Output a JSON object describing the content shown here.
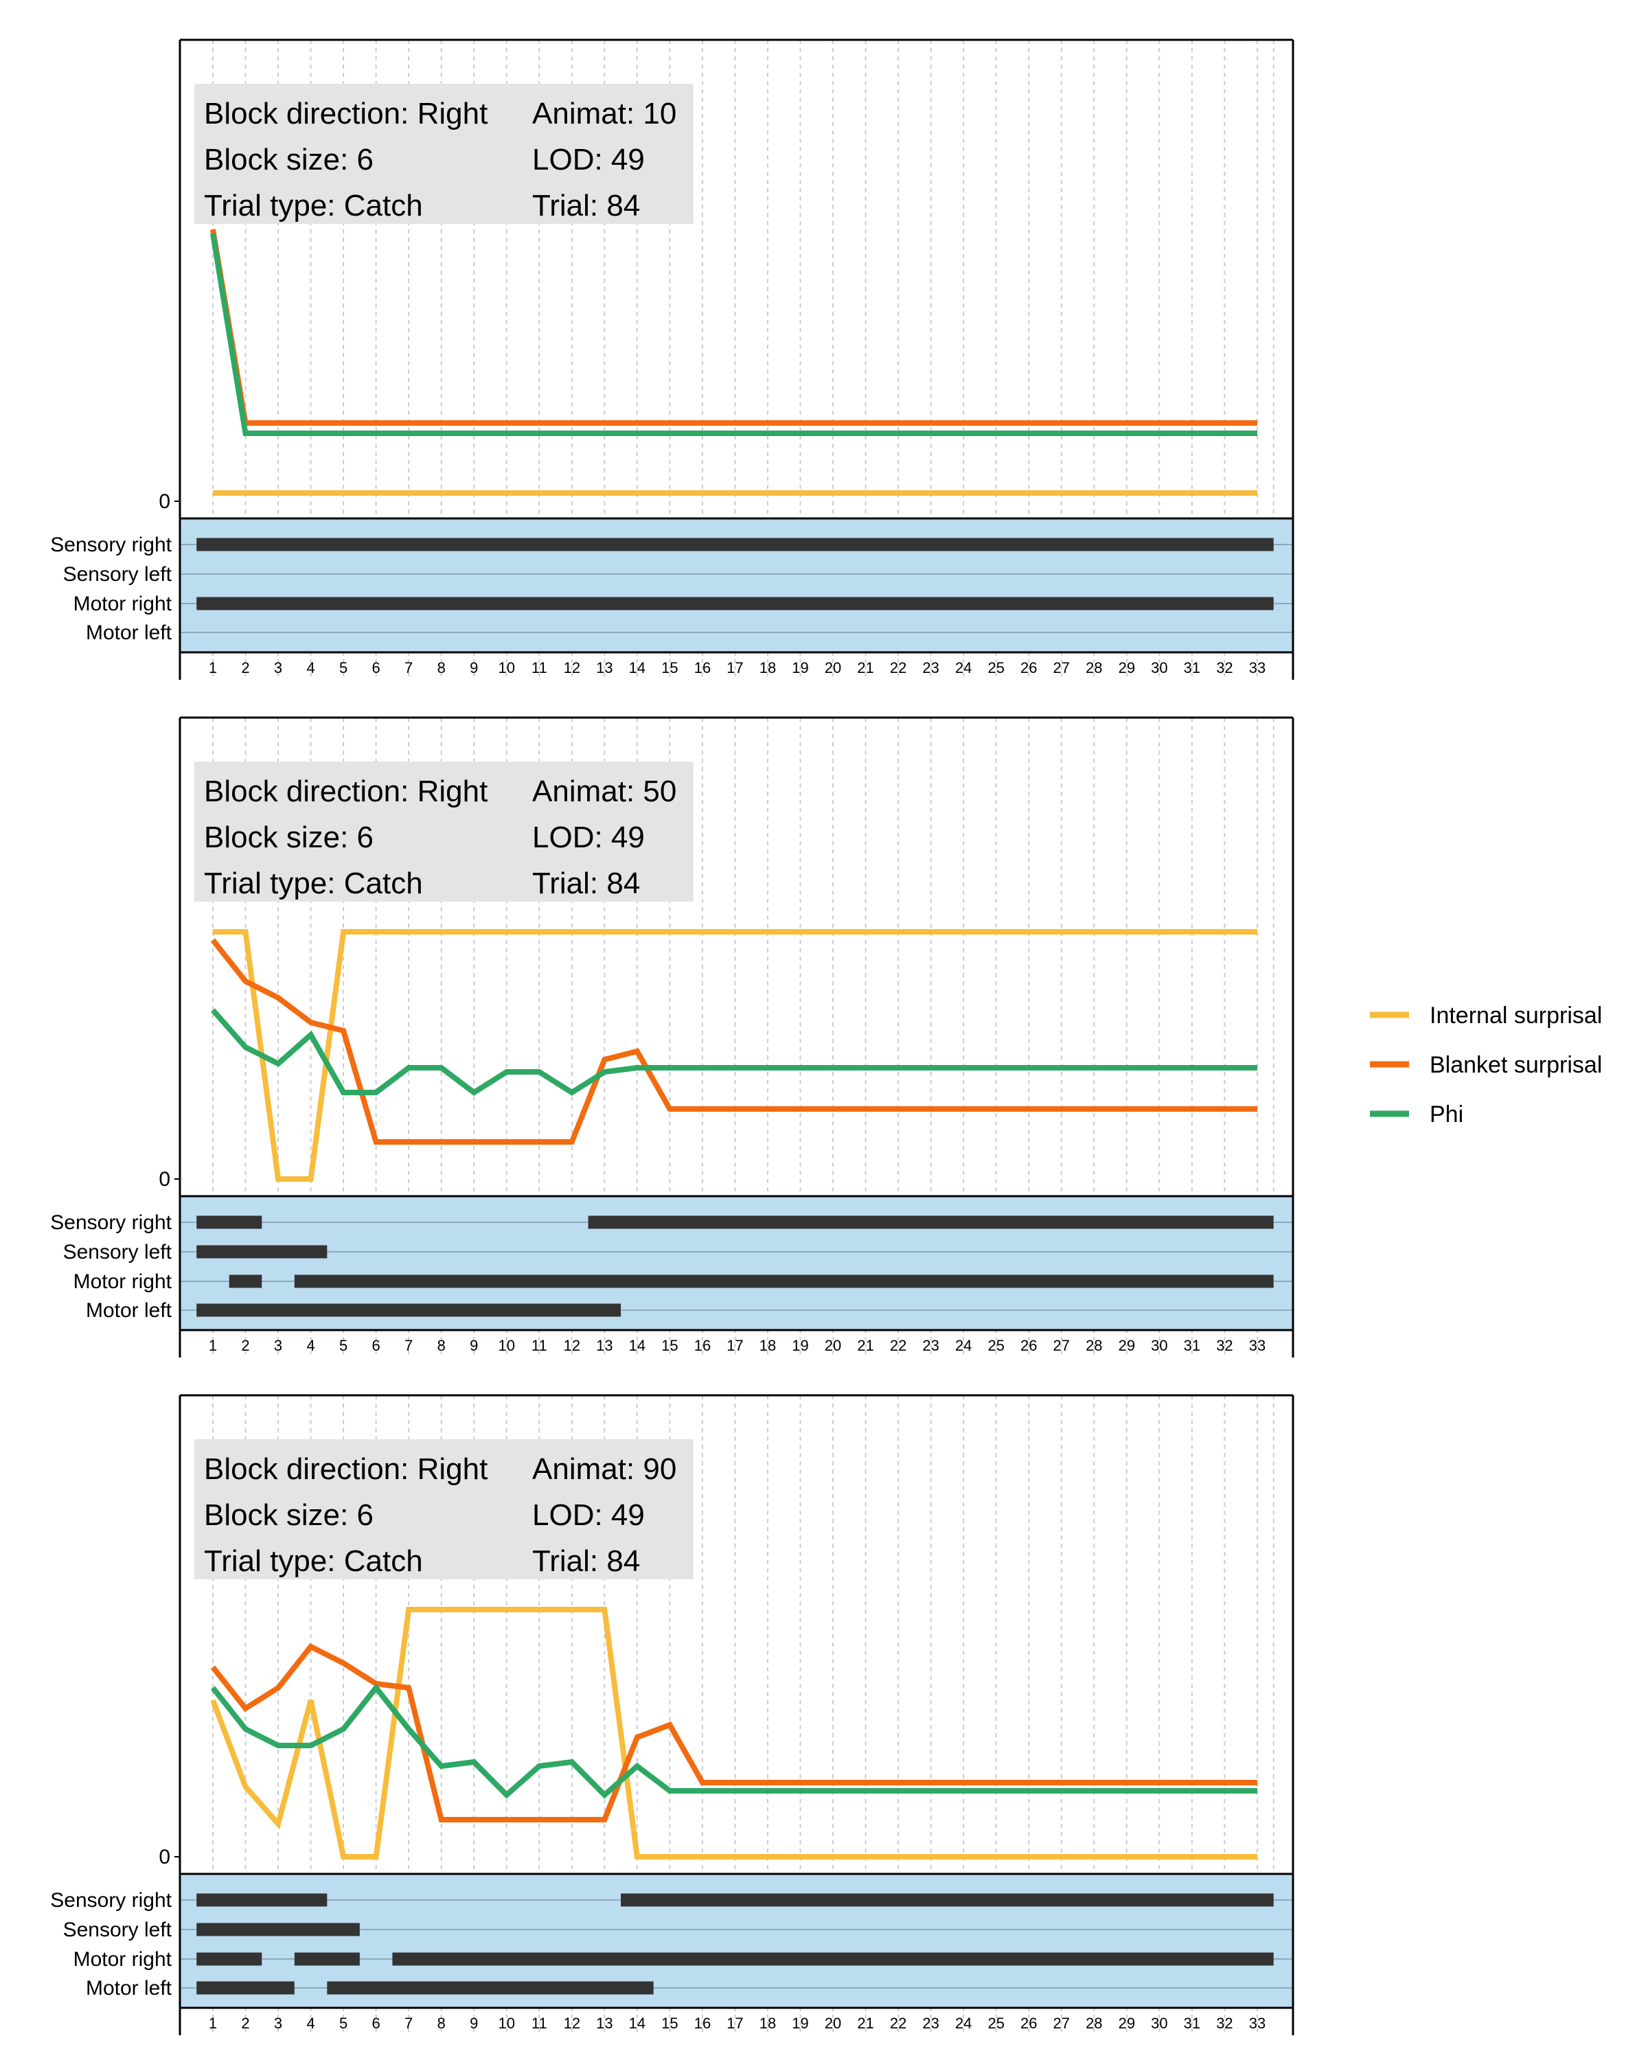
{
  "colors": {
    "internal": "#F8BC3C",
    "blanket": "#F26B10",
    "phi": "#2EA864",
    "state_bg": "#BCDCF0",
    "state_bar": "#333333",
    "info_bg": "#E4E4E4",
    "grid": "#CCCCCC"
  },
  "chart_data": {
    "type": "line",
    "x_ticks": [
      1,
      2,
      3,
      4,
      5,
      6,
      7,
      8,
      9,
      10,
      11,
      12,
      13,
      14,
      15,
      16,
      17,
      18,
      19,
      20,
      21,
      22,
      23,
      24,
      25,
      26,
      27,
      28,
      29,
      30,
      31,
      32,
      33
    ],
    "y_zero_label": "0",
    "legend": [
      {
        "key": "internal",
        "label": "Internal surprisal"
      },
      {
        "key": "blanket",
        "label": "Blanket surprisal"
      },
      {
        "key": "phi",
        "label": "Phi"
      }
    ],
    "state_rows": [
      "Sensory right",
      "Sensory left",
      "Motor right",
      "Motor left"
    ],
    "panels": [
      {
        "info": [
          [
            "Block direction: Right",
            "Animat: 10"
          ],
          [
            "Block size: 6",
            "LOD: 49"
          ],
          [
            "Trial type: Catch",
            "Trial: 84"
          ]
        ],
        "series": {
          "internal": [
            0.02,
            0.02,
            0.02,
            0.02,
            0.02,
            0.02,
            0.02,
            0.02,
            0.02,
            0.02,
            0.02,
            0.02,
            0.02,
            0.02,
            0.02,
            0.02,
            0.02,
            0.02,
            0.02,
            0.02,
            0.02,
            0.02,
            0.02,
            0.02,
            0.02,
            0.02,
            0.02,
            0.02,
            0.02,
            0.02,
            0.02,
            0.02,
            0.02
          ],
          "blanket": [
            0.66,
            0.19,
            0.19,
            0.19,
            0.19,
            0.19,
            0.19,
            0.19,
            0.19,
            0.19,
            0.19,
            0.19,
            0.19,
            0.19,
            0.19,
            0.19,
            0.19,
            0.19,
            0.19,
            0.19,
            0.19,
            0.19,
            0.19,
            0.19,
            0.19,
            0.19,
            0.19,
            0.19,
            0.19,
            0.19,
            0.19,
            0.19,
            0.19
          ],
          "phi": [
            0.65,
            0.165,
            0.165,
            0.165,
            0.165,
            0.165,
            0.165,
            0.165,
            0.165,
            0.165,
            0.165,
            0.165,
            0.165,
            0.165,
            0.165,
            0.165,
            0.165,
            0.165,
            0.165,
            0.165,
            0.165,
            0.165,
            0.165,
            0.165,
            0.165,
            0.165,
            0.165,
            0.165,
            0.165,
            0.165,
            0.165,
            0.165,
            0.165
          ]
        },
        "states": [
          [
            [
              1,
              33
            ]
          ],
          [],
          [
            [
              1,
              33
            ]
          ],
          []
        ]
      },
      {
        "info": [
          [
            "Block direction: Right",
            "Animat: 50"
          ],
          [
            "Block size: 6",
            "LOD: 49"
          ],
          [
            "Trial type: Catch",
            "Trial: 84"
          ]
        ],
        "series": {
          "internal": [
            0.6,
            0.6,
            0.0,
            0.0,
            0.6,
            0.6,
            0.6,
            0.6,
            0.6,
            0.6,
            0.6,
            0.6,
            0.6,
            0.6,
            0.6,
            0.6,
            0.6,
            0.6,
            0.6,
            0.6,
            0.6,
            0.6,
            0.6,
            0.6,
            0.6,
            0.6,
            0.6,
            0.6,
            0.6,
            0.6,
            0.6,
            0.6,
            0.6
          ],
          "blanket": [
            0.58,
            0.48,
            0.44,
            0.38,
            0.36,
            0.09,
            0.09,
            0.09,
            0.09,
            0.09,
            0.09,
            0.09,
            0.29,
            0.31,
            0.17,
            0.17,
            0.17,
            0.17,
            0.17,
            0.17,
            0.17,
            0.17,
            0.17,
            0.17,
            0.17,
            0.17,
            0.17,
            0.17,
            0.17,
            0.17,
            0.17,
            0.17,
            0.17
          ],
          "phi": [
            0.41,
            0.32,
            0.28,
            0.35,
            0.21,
            0.21,
            0.27,
            0.27,
            0.21,
            0.26,
            0.26,
            0.21,
            0.26,
            0.27,
            0.27,
            0.27,
            0.27,
            0.27,
            0.27,
            0.27,
            0.27,
            0.27,
            0.27,
            0.27,
            0.27,
            0.27,
            0.27,
            0.27,
            0.27,
            0.27,
            0.27,
            0.27,
            0.27
          ]
        },
        "states": [
          [
            [
              1,
              2
            ],
            [
              13,
              33
            ]
          ],
          [
            [
              1,
              4
            ]
          ],
          [
            [
              2,
              2
            ],
            [
              4,
              33
            ]
          ],
          [
            [
              1,
              13
            ]
          ]
        ]
      },
      {
        "info": [
          [
            "Block direction: Right",
            "Animat: 90"
          ],
          [
            "Block size: 6",
            "LOD: 49"
          ],
          [
            "Trial type: Catch",
            "Trial: 84"
          ]
        ],
        "series": {
          "internal": [
            0.38,
            0.17,
            0.08,
            0.38,
            0.0,
            0.0,
            0.6,
            0.6,
            0.6,
            0.6,
            0.6,
            0.6,
            0.6,
            0.0,
            0.0,
            0.0,
            0.0,
            0.0,
            0.0,
            0.0,
            0.0,
            0.0,
            0.0,
            0.0,
            0.0,
            0.0,
            0.0,
            0.0,
            0.0,
            0.0,
            0.0,
            0.0,
            0.0
          ],
          "blanket": [
            0.46,
            0.36,
            0.41,
            0.51,
            0.47,
            0.42,
            0.41,
            0.09,
            0.09,
            0.09,
            0.09,
            0.09,
            0.09,
            0.29,
            0.32,
            0.18,
            0.18,
            0.18,
            0.18,
            0.18,
            0.18,
            0.18,
            0.18,
            0.18,
            0.18,
            0.18,
            0.18,
            0.18,
            0.18,
            0.18,
            0.18,
            0.18,
            0.18
          ],
          "phi": [
            0.41,
            0.31,
            0.27,
            0.27,
            0.31,
            0.41,
            0.31,
            0.22,
            0.23,
            0.15,
            0.22,
            0.23,
            0.15,
            0.22,
            0.16,
            0.16,
            0.16,
            0.16,
            0.16,
            0.16,
            0.16,
            0.16,
            0.16,
            0.16,
            0.16,
            0.16,
            0.16,
            0.16,
            0.16,
            0.16,
            0.16,
            0.16,
            0.16
          ]
        },
        "states": [
          [
            [
              1,
              4
            ],
            [
              14,
              33
            ]
          ],
          [
            [
              1,
              5
            ]
          ],
          [
            [
              1,
              2
            ],
            [
              4,
              5
            ],
            [
              7,
              33
            ]
          ],
          [
            [
              1,
              3
            ],
            [
              5,
              14
            ]
          ]
        ]
      }
    ]
  }
}
